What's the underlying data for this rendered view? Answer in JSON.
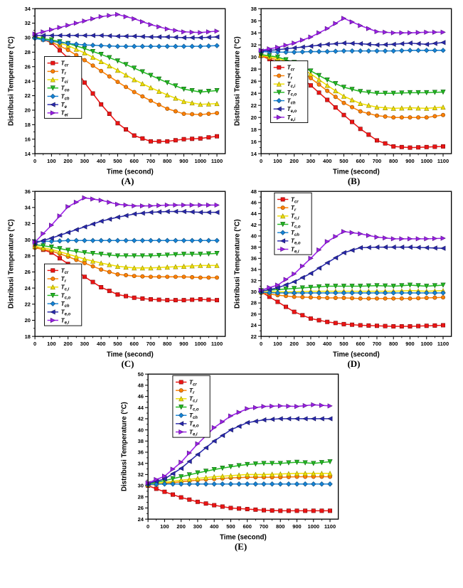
{
  "page": {
    "background": "#ffffff"
  },
  "chart_data": [
    {
      "id": "A",
      "type": "line",
      "panel_label": "(A)",
      "xlabel": "Time (second)",
      "ylabel": "Distribusi Temperature (°C)",
      "xlim": [
        0,
        1150
      ],
      "ylim": [
        14,
        34
      ],
      "ytick_step": 2,
      "xticks": [
        0,
        100,
        200,
        300,
        400,
        500,
        600,
        700,
        800,
        900,
        1000,
        1100
      ],
      "legend": {
        "x": 0.05,
        "y": 0.33
      },
      "x": [
        0,
        100,
        200,
        300,
        400,
        500,
        600,
        700,
        800,
        900,
        1000,
        1100
      ],
      "series": [
        {
          "name_main": "T",
          "name_sub": "cr",
          "marker": "square",
          "color": "#ee1414",
          "edge": "#7c0a0a",
          "values": [
            30.2,
            29.3,
            27.2,
            23.8,
            20.8,
            18.2,
            16.5,
            15.7,
            15.7,
            16.0,
            16.1,
            16.4
          ]
        },
        {
          "name_main": "T",
          "name_sub": "r",
          "marker": "circle",
          "color": "#ff8000",
          "edge": "#8f4700",
          "values": [
            30.1,
            29.4,
            28.3,
            26.9,
            25.4,
            23.9,
            22.5,
            21.3,
            20.2,
            19.5,
            19.4,
            19.6
          ]
        },
        {
          "name_main": "T",
          "name_sub": "ci",
          "marker": "triangle-up",
          "color": "#f0e000",
          "edge": "#8f8500",
          "values": [
            30.1,
            29.6,
            28.9,
            27.9,
            26.7,
            25.5,
            24.2,
            23.1,
            22.1,
            21.2,
            20.8,
            20.9
          ]
        },
        {
          "name_main": "T",
          "name_sub": "co",
          "marker": "triangle-down",
          "color": "#22bb22",
          "edge": "#0f5f0f",
          "values": [
            30.0,
            29.7,
            29.2,
            28.5,
            27.7,
            26.8,
            25.8,
            24.8,
            23.8,
            22.9,
            22.5,
            22.7
          ]
        },
        {
          "name_main": "T",
          "name_sub": "ch",
          "marker": "diamond",
          "color": "#1583d6",
          "edge": "#0b4a7a",
          "values": [
            29.9,
            29.5,
            29.2,
            29.0,
            28.9,
            28.8,
            28.8,
            28.8,
            28.8,
            28.8,
            28.8,
            28.9
          ]
        },
        {
          "name_main": "T",
          "name_sub": "e",
          "marker": "triangle-left",
          "color": "#2929ad",
          "edge": "#14145e",
          "values": [
            30.3,
            30.3,
            30.3,
            30.3,
            30.3,
            30.2,
            30.2,
            30.1,
            30.1,
            30.0,
            30.0,
            30.1
          ]
        },
        {
          "name_main": "T",
          "name_sub": "ei",
          "marker": "triangle-right",
          "color": "#9b1fe8",
          "edge": "#520d80",
          "values": [
            30.5,
            31.1,
            31.7,
            32.3,
            32.9,
            33.2,
            32.6,
            31.8,
            31.2,
            30.8,
            30.7,
            30.9
          ]
        }
      ]
    },
    {
      "id": "B",
      "type": "line",
      "panel_label": "(B)",
      "xlabel": "Time (second)",
      "ylabel": "Distribusi Temperature (°C)",
      "xlim": [
        0,
        1150
      ],
      "ylim": [
        14,
        38
      ],
      "ytick_step": 2,
      "xticks": [
        0,
        100,
        200,
        300,
        400,
        500,
        600,
        700,
        800,
        900,
        1000,
        1100
      ],
      "legend": {
        "x": 0.05,
        "y": 0.36
      },
      "x": [
        0,
        100,
        200,
        300,
        400,
        500,
        600,
        700,
        800,
        900,
        1000,
        1100
      ],
      "series": [
        {
          "name_main": "T",
          "name_sub": "cr",
          "marker": "square",
          "color": "#ee1414",
          "edge": "#7c0a0a",
          "values": [
            30.2,
            29.1,
            27.4,
            25.3,
            22.9,
            20.4,
            18.1,
            16.2,
            15.2,
            15.0,
            15.1,
            15.2
          ]
        },
        {
          "name_main": "T",
          "name_sub": "r",
          "marker": "circle",
          "color": "#ff8000",
          "edge": "#8f4700",
          "values": [
            30.2,
            29.5,
            28.3,
            26.5,
            24.4,
            22.4,
            21.0,
            20.3,
            20.0,
            20.0,
            20.0,
            20.4
          ]
        },
        {
          "name_main": "T",
          "name_sub": "c,i",
          "marker": "triangle-up",
          "color": "#f0e000",
          "edge": "#8f8500",
          "values": [
            30.3,
            29.8,
            28.8,
            27.2,
            25.3,
            23.5,
            22.3,
            21.7,
            21.5,
            21.6,
            21.5,
            21.7
          ]
        },
        {
          "name_main": "T",
          "name_sub": "c,o",
          "marker": "triangle-down",
          "color": "#22bb22",
          "edge": "#0f5f0f",
          "values": [
            30.4,
            30.0,
            29.1,
            27.7,
            26.2,
            25.0,
            24.3,
            24.0,
            24.0,
            24.1,
            24.1,
            24.2
          ]
        },
        {
          "name_main": "T",
          "name_sub": "ch",
          "marker": "diamond",
          "color": "#1583d6",
          "edge": "#0b4a7a",
          "values": [
            30.9,
            30.8,
            30.8,
            30.9,
            30.9,
            31.0,
            31.0,
            31.0,
            31.0,
            31.1,
            31.1,
            31.1
          ]
        },
        {
          "name_main": "T",
          "name_sub": "e,o",
          "marker": "triangle-left",
          "color": "#2929ad",
          "edge": "#14145e",
          "values": [
            31.0,
            31.2,
            31.5,
            31.8,
            32.1,
            32.3,
            32.2,
            32.0,
            32.1,
            32.3,
            32.1,
            32.4
          ]
        },
        {
          "name_main": "T",
          "name_sub": "e,i",
          "marker": "triangle-right",
          "color": "#9b1fe8",
          "edge": "#520d80",
          "values": [
            31.1,
            31.6,
            32.3,
            33.3,
            34.7,
            36.4,
            35.2,
            34.2,
            34.0,
            34.0,
            34.1,
            34.1
          ]
        }
      ]
    },
    {
      "id": "C",
      "type": "line",
      "panel_label": "(C)",
      "xlabel": "Time (second)",
      "ylabel": "Distribusi Temperature (°C)",
      "xlim": [
        0,
        1150
      ],
      "ylim": [
        18,
        36
      ],
      "ytick_step": 2,
      "xticks": [
        0,
        100,
        200,
        300,
        400,
        500,
        600,
        700,
        800,
        900,
        1000,
        1100
      ],
      "legend": {
        "x": 0.05,
        "y": 0.5
      },
      "x": [
        0,
        100,
        200,
        300,
        400,
        500,
        600,
        700,
        800,
        900,
        1000,
        1100
      ],
      "series": [
        {
          "name_main": "T",
          "name_sub": "cr",
          "marker": "square",
          "color": "#ee1414",
          "edge": "#7c0a0a",
          "values": [
            29.1,
            28.4,
            27.0,
            25.4,
            24.1,
            23.2,
            22.8,
            22.6,
            22.5,
            22.5,
            22.6,
            22.5
          ]
        },
        {
          "name_main": "T",
          "name_sub": "r",
          "marker": "circle",
          "color": "#ff8000",
          "edge": "#8f4700",
          "values": [
            29.0,
            28.6,
            27.9,
            27.1,
            26.3,
            25.7,
            25.5,
            25.4,
            25.4,
            25.4,
            25.3,
            25.3
          ]
        },
        {
          "name_main": "T",
          "name_sub": "c,i",
          "marker": "triangle-up",
          "color": "#f0e000",
          "edge": "#8f8500",
          "values": [
            29.2,
            28.8,
            28.2,
            27.6,
            27.1,
            26.7,
            26.5,
            26.5,
            26.6,
            26.7,
            26.8,
            26.8
          ]
        },
        {
          "name_main": "T",
          "name_sub": "c,o",
          "marker": "triangle-down",
          "color": "#22bb22",
          "edge": "#0f5f0f",
          "values": [
            29.4,
            29.1,
            28.7,
            28.4,
            28.2,
            28.0,
            28.0,
            28.0,
            28.1,
            28.2,
            28.2,
            28.3
          ]
        },
        {
          "name_main": "T",
          "name_sub": "ch",
          "marker": "diamond",
          "color": "#1583d6",
          "edge": "#0b4a7a",
          "values": [
            29.8,
            29.8,
            29.9,
            29.9,
            29.9,
            29.9,
            29.9,
            29.9,
            29.9,
            29.9,
            29.9,
            29.9
          ]
        },
        {
          "name_main": "T",
          "name_sub": "e,o",
          "marker": "triangle-left",
          "color": "#2929ad",
          "edge": "#14145e",
          "values": [
            29.6,
            30.2,
            30.9,
            31.6,
            32.3,
            32.8,
            33.2,
            33.4,
            33.5,
            33.5,
            33.4,
            33.4
          ]
        },
        {
          "name_main": "T",
          "name_sub": "e,i",
          "marker": "triangle-right",
          "color": "#9b1fe8",
          "edge": "#520d80",
          "values": [
            29.7,
            31.8,
            34.1,
            35.2,
            34.9,
            34.4,
            34.2,
            34.2,
            34.3,
            34.3,
            34.3,
            34.3
          ]
        }
      ]
    },
    {
      "id": "D",
      "type": "line",
      "panel_label": "(D)",
      "xlabel": "Time (second)",
      "ylabel": "Distribusi Temperature (°C)",
      "xlim": [
        0,
        1150
      ],
      "ylim": [
        22,
        48
      ],
      "ytick_step": 2,
      "xticks": [
        0,
        100,
        200,
        300,
        400,
        500,
        600,
        700,
        800,
        900,
        1000,
        1100
      ],
      "legend": {
        "x": 0.07,
        "y": 0.01
      },
      "x": [
        0,
        100,
        200,
        300,
        400,
        500,
        600,
        700,
        800,
        900,
        1000,
        1100
      ],
      "series": [
        {
          "name_main": "T",
          "name_sub": "cr",
          "marker": "square",
          "color": "#ee1414",
          "edge": "#7c0a0a",
          "values": [
            30.0,
            28.2,
            26.4,
            25.2,
            24.6,
            24.2,
            24.0,
            23.9,
            23.8,
            23.8,
            23.9,
            24.0
          ]
        },
        {
          "name_main": "T",
          "name_sub": "r",
          "marker": "circle",
          "color": "#ff8000",
          "edge": "#8f4700",
          "values": [
            29.8,
            29.4,
            29.1,
            29.0,
            28.9,
            28.9,
            28.8,
            28.8,
            28.8,
            28.8,
            28.9,
            29.0
          ]
        },
        {
          "name_main": "T",
          "name_sub": "c,i",
          "marker": "triangle-up",
          "color": "#f0e000",
          "edge": "#8f8500",
          "values": [
            30.0,
            30.0,
            30.0,
            30.1,
            30.1,
            30.1,
            30.1,
            30.1,
            30.1,
            30.2,
            30.1,
            30.2
          ]
        },
        {
          "name_main": "T",
          "name_sub": "c,o",
          "marker": "triangle-down",
          "color": "#22bb22",
          "edge": "#0f5f0f",
          "values": [
            30.2,
            30.4,
            30.6,
            30.8,
            31.0,
            31.0,
            31.0,
            31.1,
            31.0,
            31.2,
            31.0,
            31.2
          ]
        },
        {
          "name_main": "T",
          "name_sub": "ch",
          "marker": "diamond",
          "color": "#1583d6",
          "edge": "#0b4a7a",
          "values": [
            29.9,
            29.8,
            29.8,
            29.8,
            29.8,
            29.8,
            29.8,
            29.8,
            29.8,
            29.8,
            29.8,
            29.8
          ]
        },
        {
          "name_main": "T",
          "name_sub": "e,o",
          "marker": "triangle-left",
          "color": "#2929ad",
          "edge": "#14145e",
          "values": [
            30.1,
            30.7,
            31.8,
            33.3,
            35.2,
            37.0,
            37.9,
            38.0,
            38.0,
            38.0,
            37.9,
            37.8
          ]
        },
        {
          "name_main": "T",
          "name_sub": "e,i",
          "marker": "triangle-right",
          "color": "#9b1fe8",
          "edge": "#520d80",
          "values": [
            30.3,
            31.2,
            33.2,
            36.0,
            39.0,
            40.8,
            40.4,
            39.8,
            39.5,
            39.5,
            39.5,
            39.6
          ]
        }
      ]
    },
    {
      "id": "E",
      "type": "line",
      "panel_label": "(E)",
      "xlabel": "Time (second)",
      "ylabel": "Distribusi Temperature (°C)",
      "xlim": [
        0,
        1150
      ],
      "ylim": [
        24,
        50
      ],
      "ytick_step": 2,
      "xticks": [
        0,
        100,
        200,
        300,
        400,
        500,
        600,
        700,
        800,
        900,
        1000,
        1100
      ],
      "legend": {
        "x": 0.13,
        "y": 0.01
      },
      "x": [
        0,
        100,
        200,
        300,
        400,
        500,
        600,
        700,
        800,
        900,
        1000,
        1100
      ],
      "series": [
        {
          "name_main": "T",
          "name_sub": "cr",
          "marker": "square",
          "color": "#ee1414",
          "edge": "#7c0a0a",
          "values": [
            30.0,
            28.9,
            27.9,
            27.1,
            26.5,
            26.0,
            25.8,
            25.6,
            25.5,
            25.5,
            25.5,
            25.5
          ]
        },
        {
          "name_main": "T",
          "name_sub": "r",
          "marker": "circle",
          "color": "#ff8000",
          "edge": "#8f4700",
          "values": [
            30.1,
            30.4,
            30.7,
            31.0,
            31.2,
            31.4,
            31.5,
            31.5,
            31.5,
            31.6,
            31.6,
            31.6
          ]
        },
        {
          "name_main": "T",
          "name_sub": "c,i",
          "marker": "triangle-up",
          "color": "#f0e000",
          "edge": "#8f8500",
          "values": [
            30.2,
            30.6,
            31.0,
            31.3,
            31.6,
            31.8,
            32.0,
            32.0,
            32.1,
            32.2,
            32.2,
            32.2
          ]
        },
        {
          "name_main": "T",
          "name_sub": "c,o",
          "marker": "triangle-down",
          "color": "#22bb22",
          "edge": "#0f5f0f",
          "values": [
            30.3,
            30.9,
            31.6,
            32.3,
            32.9,
            33.4,
            33.8,
            34.0,
            34.0,
            34.2,
            34.0,
            34.3
          ]
        },
        {
          "name_main": "T",
          "name_sub": "ch",
          "marker": "diamond",
          "color": "#1583d6",
          "edge": "#0b4a7a",
          "values": [
            30.2,
            30.3,
            30.3,
            30.3,
            30.3,
            30.3,
            30.3,
            30.3,
            30.3,
            30.3,
            30.3,
            30.3
          ]
        },
        {
          "name_main": "T",
          "name_sub": "e,o",
          "marker": "triangle-left",
          "color": "#2929ad",
          "edge": "#14145e",
          "values": [
            30.4,
            31.2,
            33.1,
            35.6,
            38.0,
            40.0,
            41.3,
            41.8,
            42.0,
            42.0,
            42.0,
            42.0
          ]
        },
        {
          "name_main": "T",
          "name_sub": "e,i",
          "marker": "triangle-right",
          "color": "#9b1fe8",
          "edge": "#520d80",
          "values": [
            30.5,
            31.7,
            34.2,
            37.5,
            40.4,
            42.5,
            43.8,
            44.2,
            44.3,
            44.2,
            44.5,
            44.3
          ]
        }
      ]
    }
  ]
}
